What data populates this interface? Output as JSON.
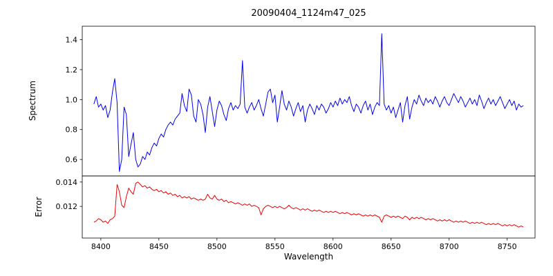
{
  "figure": {
    "title": "20090404_1124m47_025",
    "xlabel": "Wavelength",
    "background": "#ffffff",
    "axes_color": "#000000"
  },
  "chart_data": [
    {
      "type": "line",
      "name": "spectrum",
      "title": "20090404_1124m47_025",
      "ylabel": "Spectrum",
      "color": "#0000ee",
      "grid": false,
      "legend": null,
      "x_start": 8394,
      "x_step": 2,
      "xlim": [
        8384,
        8774
      ],
      "ylim": [
        0.49,
        1.49
      ],
      "ytick_values": [
        0.6,
        0.8,
        1.0,
        1.2,
        1.4
      ],
      "ytick_labels": [
        "0.6",
        "0.8",
        "1.0",
        "1.2",
        "1.4"
      ],
      "values": [
        0.97,
        1.02,
        0.95,
        0.97,
        0.93,
        0.96,
        0.88,
        0.93,
        1.05,
        1.14,
        0.98,
        0.52,
        0.6,
        0.95,
        0.9,
        0.62,
        0.7,
        0.78,
        0.6,
        0.55,
        0.57,
        0.62,
        0.6,
        0.65,
        0.63,
        0.68,
        0.71,
        0.69,
        0.74,
        0.77,
        0.75,
        0.8,
        0.83,
        0.85,
        0.83,
        0.87,
        0.89,
        0.91,
        1.04,
        0.96,
        0.92,
        1.07,
        1.03,
        0.89,
        0.85,
        1.0,
        0.97,
        0.9,
        0.78,
        0.95,
        1.02,
        0.92,
        0.82,
        0.93,
        0.99,
        0.96,
        0.9,
        0.86,
        0.94,
        0.98,
        0.93,
        0.96,
        0.94,
        0.97,
        1.26,
        0.95,
        0.91,
        0.95,
        0.98,
        0.93,
        0.96,
        1.0,
        0.94,
        0.89,
        0.97,
        1.05,
        1.07,
        0.98,
        1.03,
        0.85,
        0.95,
        1.06,
        0.97,
        0.93,
        0.99,
        0.95,
        0.89,
        0.94,
        0.98,
        0.92,
        0.96,
        0.85,
        0.93,
        0.97,
        0.94,
        0.9,
        0.96,
        0.93,
        0.97,
        0.95,
        0.91,
        0.94,
        0.98,
        0.95,
        0.99,
        0.96,
        1.01,
        0.97,
        1.0,
        0.98,
        1.02,
        0.96,
        0.92,
        0.97,
        0.95,
        0.91,
        0.96,
        0.99,
        0.93,
        0.97,
        0.9,
        0.95,
        0.98,
        0.96,
        1.44,
        0.97,
        0.93,
        0.96,
        0.91,
        0.95,
        0.88,
        0.93,
        0.98,
        0.85,
        0.96,
        1.02,
        0.87,
        0.95,
        1.0,
        0.97,
        1.03,
        0.99,
        0.96,
        1.01,
        0.98,
        1.0,
        0.97,
        1.02,
        0.99,
        0.95,
        0.99,
        1.02,
        0.98,
        0.96,
        1.0,
        1.04,
        1.01,
        0.98,
        1.02,
        0.99,
        0.95,
        0.98,
        1.01,
        0.97,
        1.0,
        0.96,
        1.03,
        0.99,
        0.94,
        0.98,
        1.01,
        0.97,
        1.0,
        0.96,
        0.99,
        1.02,
        0.98,
        0.94,
        0.97,
        1.0,
        0.96,
        0.99,
        0.93,
        0.97,
        0.95,
        0.96
      ]
    },
    {
      "type": "line",
      "name": "error",
      "ylabel": "Error",
      "xlabel": "Wavelength",
      "color": "#ee0000",
      "grid": false,
      "legend": null,
      "x_start": 8394,
      "x_step": 2,
      "xlim": [
        8384,
        8774
      ],
      "ylim": [
        0.0094,
        0.0145
      ],
      "ytick_values": [
        0.012,
        0.014
      ],
      "ytick_labels": [
        "0.012",
        "0.014"
      ],
      "xtick_values": [
        8400,
        8450,
        8500,
        8550,
        8600,
        8650,
        8700,
        8750
      ],
      "xtick_labels": [
        "8400",
        "8450",
        "8500",
        "8550",
        "8600",
        "8650",
        "8700",
        "8750"
      ],
      "values": [
        0.0107,
        0.0108,
        0.011,
        0.0109,
        0.0107,
        0.0108,
        0.0106,
        0.0109,
        0.011,
        0.0112,
        0.0138,
        0.0132,
        0.0121,
        0.0119,
        0.0128,
        0.0135,
        0.0132,
        0.013,
        0.0139,
        0.014,
        0.0138,
        0.0136,
        0.0137,
        0.0135,
        0.0136,
        0.0134,
        0.0133,
        0.0134,
        0.0132,
        0.0133,
        0.0131,
        0.0132,
        0.013,
        0.0131,
        0.0129,
        0.013,
        0.0128,
        0.0129,
        0.0127,
        0.0128,
        0.0127,
        0.0128,
        0.0126,
        0.0127,
        0.0126,
        0.0125,
        0.0126,
        0.0125,
        0.0126,
        0.013,
        0.0127,
        0.0126,
        0.0129,
        0.0126,
        0.0125,
        0.0126,
        0.0124,
        0.0125,
        0.0123,
        0.0124,
        0.0123,
        0.0122,
        0.0123,
        0.0122,
        0.0121,
        0.0122,
        0.0121,
        0.0122,
        0.012,
        0.0121,
        0.012,
        0.0119,
        0.0113,
        0.0118,
        0.012,
        0.0121,
        0.012,
        0.0119,
        0.012,
        0.0119,
        0.012,
        0.0119,
        0.0118,
        0.0119,
        0.0121,
        0.0119,
        0.0118,
        0.0119,
        0.0118,
        0.0117,
        0.0118,
        0.0117,
        0.0118,
        0.0117,
        0.0116,
        0.0117,
        0.0116,
        0.0117,
        0.0116,
        0.0115,
        0.0116,
        0.0115,
        0.0116,
        0.0115,
        0.0116,
        0.0115,
        0.0114,
        0.0115,
        0.0114,
        0.0115,
        0.0114,
        0.0113,
        0.0114,
        0.0113,
        0.0114,
        0.0113,
        0.0112,
        0.0113,
        0.0112,
        0.0113,
        0.0112,
        0.0113,
        0.0112,
        0.0111,
        0.0107,
        0.0112,
        0.0113,
        0.0112,
        0.0111,
        0.0112,
        0.0111,
        0.0112,
        0.0111,
        0.011,
        0.0112,
        0.0111,
        0.0109,
        0.0111,
        0.011,
        0.0111,
        0.011,
        0.0111,
        0.011,
        0.0109,
        0.011,
        0.0109,
        0.011,
        0.0109,
        0.0108,
        0.0109,
        0.0108,
        0.0109,
        0.0108,
        0.0109,
        0.0108,
        0.0107,
        0.0108,
        0.0107,
        0.0108,
        0.0107,
        0.0108,
        0.0107,
        0.0106,
        0.0107,
        0.0106,
        0.0107,
        0.0106,
        0.0107,
        0.0106,
        0.0105,
        0.0106,
        0.0105,
        0.0106,
        0.0105,
        0.0106,
        0.0105,
        0.0104,
        0.0105,
        0.0104,
        0.0105,
        0.0104,
        0.0105,
        0.0104,
        0.0103,
        0.0104,
        0.0103
      ]
    }
  ]
}
